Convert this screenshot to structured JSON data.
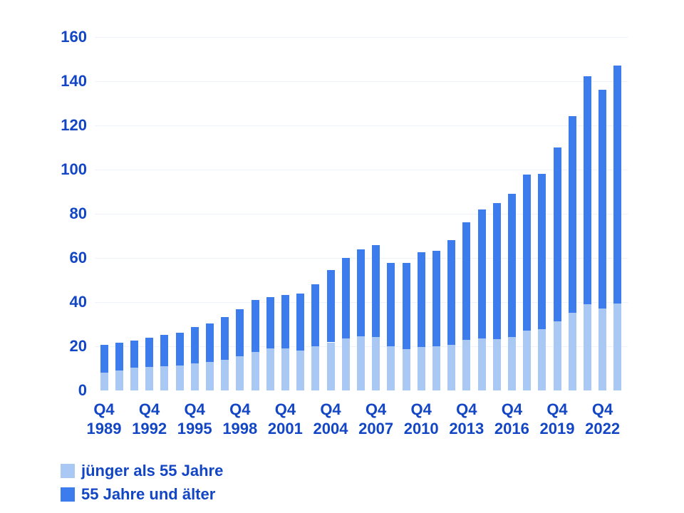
{
  "chart_data": {
    "type": "bar",
    "stacked": true,
    "title": "",
    "xlabel": "",
    "ylabel": "",
    "ylim": [
      0,
      160
    ],
    "yticks": [
      0,
      20,
      40,
      60,
      80,
      100,
      120,
      140,
      160
    ],
    "grid": "horizontal-faint",
    "legend_position": "bottom-left",
    "x_tick_prefix": "Q4",
    "x_tick_years": [
      "1989",
      "1992",
      "1995",
      "1998",
      "2001",
      "2004",
      "2007",
      "2010",
      "2013",
      "2016",
      "2019",
      "2022"
    ],
    "categories": [
      "1989",
      "1990",
      "1991",
      "1992",
      "1993",
      "1994",
      "1995",
      "1996",
      "1997",
      "1998",
      "1999",
      "2000",
      "2001",
      "2002",
      "2003",
      "2004",
      "2005",
      "2006",
      "2007",
      "2008",
      "2009",
      "2010",
      "2011",
      "2012",
      "2013",
      "2014",
      "2015",
      "2016",
      "2017",
      "2018",
      "2019",
      "2020",
      "2021",
      "2022",
      "2023"
    ],
    "series": [
      {
        "name": "jünger als 55 Jahre",
        "color": "#a9c9f4",
        "values": [
          8.2,
          9.0,
          10.2,
          10.7,
          11.0,
          11.4,
          12.3,
          13.0,
          13.9,
          15.6,
          17.3,
          18.9,
          19.1,
          18.2,
          20.1,
          21.8,
          23.4,
          24.4,
          24.2,
          20.1,
          18.8,
          19.5,
          20.1,
          20.6,
          23.0,
          23.4,
          23.1,
          24.2,
          27.1,
          27.6,
          31.2,
          35.3,
          39.1,
          37.1,
          39.3
        ]
      },
      {
        "name": "55 Jahre und älter",
        "color": "#3d7cec",
        "values": [
          12.5,
          12.5,
          12.4,
          13.3,
          14.1,
          14.6,
          16.3,
          17.2,
          19.2,
          21.2,
          23.6,
          23.3,
          24.2,
          25.7,
          27.9,
          32.7,
          36.7,
          39.5,
          41.7,
          37.5,
          39.1,
          43.1,
          43.3,
          47.4,
          53.1,
          58.6,
          61.6,
          65.0,
          70.6,
          70.5,
          78.8,
          89.0,
          103.2,
          99.1,
          107.9
        ]
      }
    ]
  },
  "colors": {
    "text": "#1346c4",
    "grid": "#edf2fb",
    "background": "#ffffff"
  }
}
